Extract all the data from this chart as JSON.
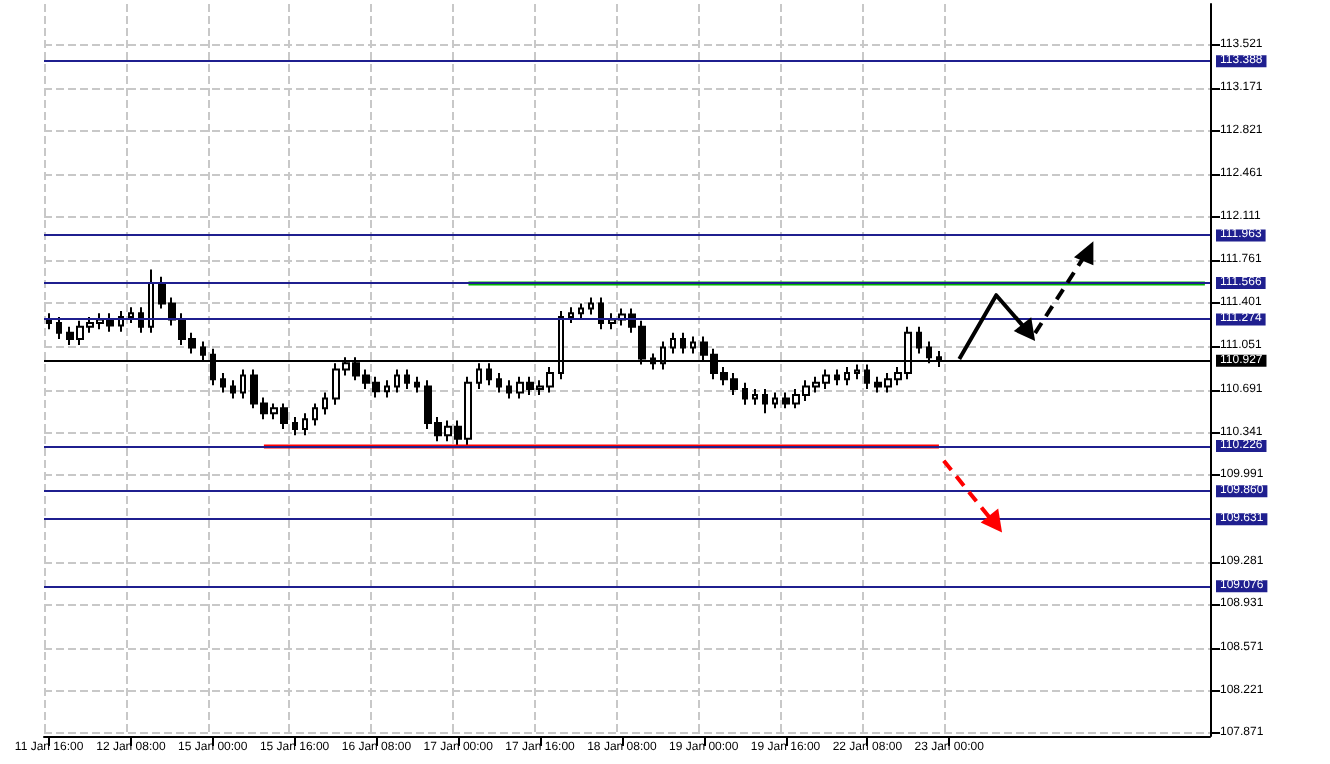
{
  "chart_data": {
    "type": "candlestick",
    "grid": true,
    "categories": [
      "11 Jan 16:00",
      null,
      null,
      null,
      null,
      null,
      null,
      null,
      "12 Jan 08:00",
      null,
      null,
      null,
      null,
      null,
      null,
      null,
      "15 Jan 00:00",
      null,
      null,
      null,
      null,
      null,
      null,
      null,
      "15 Jan 16:00",
      null,
      null,
      null,
      null,
      null,
      null,
      null,
      "16 Jan 08:00",
      null,
      null,
      null,
      null,
      null,
      null,
      null,
      "17 Jan 00:00",
      null,
      null,
      null,
      null,
      null,
      null,
      null,
      "17 Jan 16:00",
      null,
      null,
      null,
      null,
      null,
      null,
      null,
      "18 Jan 08:00",
      null,
      null,
      null,
      null,
      null,
      null,
      null,
      "19 Jan 00:00",
      null,
      null,
      null,
      null,
      null,
      null,
      null,
      "19 Jan 16:00",
      null,
      null,
      null,
      null,
      null,
      null,
      null,
      "22 Jan 08:00",
      null,
      null,
      null,
      null,
      null,
      null,
      null,
      "23 Jan 00:00",
      null,
      null,
      null,
      null,
      null,
      null,
      null,
      null,
      null,
      null,
      null,
      null,
      null,
      null,
      null,
      null,
      null,
      null,
      null,
      null,
      null,
      null,
      null,
      null,
      null
    ],
    "ylim": [
      107.85,
      113.86
    ],
    "yticks": [
      107.871,
      108.221,
      108.571,
      108.931,
      109.281,
      109.991,
      110.341,
      110.691,
      111.051,
      111.401,
      111.761,
      112.111,
      112.461,
      112.821,
      113.171,
      113.521
    ],
    "series": [
      {
        "color": "#000000",
        "ohlc": [
          [
            111.27,
            111.32,
            111.19,
            111.24
          ],
          [
            111.24,
            111.29,
            111.11,
            111.16
          ],
          [
            111.16,
            111.21,
            111.06,
            111.11
          ],
          [
            111.11,
            111.26,
            111.06,
            111.21
          ],
          [
            111.21,
            111.29,
            111.16,
            111.24
          ],
          [
            111.24,
            111.32,
            111.19,
            111.27
          ],
          [
            111.27,
            111.32,
            111.17,
            111.22
          ],
          [
            111.22,
            111.34,
            111.17,
            111.29
          ],
          [
            111.29,
            111.37,
            111.24,
            111.32
          ],
          [
            111.32,
            111.37,
            111.16,
            111.21
          ],
          [
            111.21,
            111.68,
            111.16,
            111.57
          ],
          [
            111.57,
            111.62,
            111.36,
            111.4
          ],
          [
            111.4,
            111.45,
            111.22,
            111.27
          ],
          [
            111.27,
            111.32,
            111.06,
            111.11
          ],
          [
            111.11,
            111.16,
            110.99,
            111.04
          ],
          [
            111.04,
            111.09,
            110.93,
            110.98
          ],
          [
            110.98,
            111.03,
            110.73,
            110.78
          ],
          [
            110.78,
            110.83,
            110.67,
            110.72
          ],
          [
            110.72,
            110.77,
            110.62,
            110.67
          ],
          [
            110.67,
            110.86,
            110.62,
            110.81
          ],
          [
            110.81,
            110.86,
            110.54,
            110.58
          ],
          [
            110.58,
            110.63,
            110.45,
            110.5
          ],
          [
            110.5,
            110.58,
            110.45,
            110.54
          ],
          [
            110.54,
            110.58,
            110.37,
            110.42
          ],
          [
            110.42,
            110.47,
            110.32,
            110.37
          ],
          [
            110.37,
            110.5,
            110.32,
            110.45
          ],
          [
            110.45,
            110.58,
            110.4,
            110.54
          ],
          [
            110.54,
            110.67,
            110.49,
            110.62
          ],
          [
            110.62,
            110.91,
            110.57,
            110.86
          ],
          [
            110.86,
            110.96,
            110.81,
            110.91
          ],
          [
            110.91,
            110.96,
            110.77,
            110.81
          ],
          [
            110.81,
            110.86,
            110.7,
            110.75
          ],
          [
            110.75,
            110.8,
            110.63,
            110.68
          ],
          [
            110.68,
            110.77,
            110.63,
            110.72
          ],
          [
            110.72,
            110.86,
            110.67,
            110.81
          ],
          [
            110.81,
            110.86,
            110.7,
            110.75
          ],
          [
            110.75,
            110.8,
            110.67,
            110.72
          ],
          [
            110.72,
            110.77,
            110.37,
            110.42
          ],
          [
            110.42,
            110.47,
            110.27,
            110.32
          ],
          [
            110.32,
            110.44,
            110.27,
            110.39
          ],
          [
            110.39,
            110.44,
            110.22,
            110.29
          ],
          [
            110.29,
            110.8,
            110.24,
            110.75
          ],
          [
            110.75,
            110.91,
            110.7,
            110.86
          ],
          [
            110.86,
            110.91,
            110.73,
            110.78
          ],
          [
            110.78,
            110.83,
            110.67,
            110.72
          ],
          [
            110.72,
            110.77,
            110.62,
            110.67
          ],
          [
            110.67,
            110.8,
            110.62,
            110.75
          ],
          [
            110.75,
            110.8,
            110.65,
            110.7
          ],
          [
            110.7,
            110.77,
            110.65,
            110.72
          ],
          [
            110.72,
            110.88,
            110.67,
            110.83
          ],
          [
            110.83,
            111.34,
            110.78,
            111.29
          ],
          [
            111.29,
            111.37,
            111.24,
            111.32
          ],
          [
            111.32,
            111.4,
            111.27,
            111.36
          ],
          [
            111.36,
            111.45,
            111.31,
            111.4
          ],
          [
            111.4,
            111.45,
            111.19,
            111.24
          ],
          [
            111.24,
            111.32,
            111.19,
            111.27
          ],
          [
            111.27,
            111.36,
            111.22,
            111.31
          ],
          [
            111.31,
            111.36,
            111.16,
            111.21
          ],
          [
            111.21,
            111.26,
            110.9,
            110.95
          ],
          [
            110.95,
            110.99,
            110.86,
            110.91
          ],
          [
            110.91,
            111.09,
            110.86,
            111.04
          ],
          [
            111.04,
            111.16,
            110.99,
            111.11
          ],
          [
            111.11,
            111.16,
            110.99,
            111.04
          ],
          [
            111.04,
            111.13,
            110.99,
            111.08
          ],
          [
            111.08,
            111.13,
            110.93,
            110.98
          ],
          [
            110.98,
            111.03,
            110.78,
            110.83
          ],
          [
            110.83,
            110.88,
            110.73,
            110.78
          ],
          [
            110.78,
            110.83,
            110.65,
            110.7
          ],
          [
            110.7,
            110.75,
            110.57,
            110.62
          ],
          [
            110.62,
            110.7,
            110.57,
            110.65
          ],
          [
            110.65,
            110.7,
            110.5,
            110.58
          ],
          [
            110.58,
            110.67,
            110.54,
            110.62
          ],
          [
            110.62,
            110.67,
            110.54,
            110.58
          ],
          [
            110.58,
            110.7,
            110.54,
            110.65
          ],
          [
            110.65,
            110.77,
            110.6,
            110.72
          ],
          [
            110.72,
            110.8,
            110.67,
            110.75
          ],
          [
            110.75,
            110.86,
            110.7,
            110.81
          ],
          [
            110.81,
            110.86,
            110.73,
            110.78
          ],
          [
            110.78,
            110.88,
            110.73,
            110.83
          ],
          [
            110.83,
            110.9,
            110.78,
            110.85
          ],
          [
            110.85,
            110.9,
            110.7,
            110.75
          ],
          [
            110.75,
            110.8,
            110.67,
            110.72
          ],
          [
            110.72,
            110.83,
            110.67,
            110.78
          ],
          [
            110.78,
            110.88,
            110.73,
            110.83
          ],
          [
            110.83,
            111.21,
            110.78,
            111.16
          ],
          [
            111.16,
            111.21,
            110.99,
            111.04
          ],
          [
            111.04,
            111.09,
            110.91,
            110.96
          ],
          [
            110.96,
            111.01,
            110.88,
            110.93
          ],
          null,
          null,
          null,
          null,
          null,
          null,
          null,
          null,
          null,
          null,
          null,
          null,
          null,
          null,
          null,
          null,
          null,
          null,
          null,
          null,
          null,
          null,
          null,
          null,
          null,
          null
        ]
      },
      {
        "type": "line",
        "color": "#00b400",
        "values": [
          null,
          null,
          null,
          null,
          null,
          null,
          null,
          null,
          null,
          null,
          null,
          null,
          null,
          null,
          null,
          null,
          null,
          null,
          null,
          null,
          null,
          null,
          null,
          null,
          null,
          null,
          null,
          null,
          null,
          null,
          null,
          null,
          null,
          null,
          null,
          null,
          null,
          null,
          null,
          null,
          null,
          111.566,
          111.566,
          111.566,
          111.566,
          111.566,
          111.566,
          111.566,
          111.566,
          111.566,
          111.566,
          111.566,
          111.566,
          111.566,
          111.566,
          111.566,
          111.566,
          111.566,
          111.566,
          111.566,
          111.566,
          111.566,
          111.566,
          111.566,
          111.566,
          111.566,
          111.566,
          111.566,
          111.566,
          111.566,
          111.566,
          111.566,
          111.566,
          111.566,
          111.566,
          111.566,
          111.566,
          111.566,
          111.566,
          111.566,
          111.566,
          111.566,
          111.566,
          111.566,
          111.566,
          111.566,
          111.566,
          111.566,
          111.566,
          111.566,
          111.566,
          111.566,
          111.566,
          111.566,
          111.566,
          111.566,
          111.566,
          111.566,
          111.566,
          111.566,
          111.566,
          111.566,
          111.566,
          111.566,
          111.566,
          111.566,
          111.566,
          111.566,
          111.566,
          111.566,
          111.566,
          111.566,
          111.566,
          111.566
        ]
      },
      {
        "type": "line",
        "color": "#ff0000",
        "values": [
          null,
          null,
          null,
          null,
          null,
          null,
          null,
          null,
          null,
          null,
          null,
          null,
          null,
          null,
          null,
          null,
          null,
          null,
          null,
          null,
          null,
          110.226,
          110.226,
          110.226,
          110.226,
          110.226,
          110.226,
          110.226,
          110.226,
          110.226,
          110.226,
          110.226,
          110.226,
          110.226,
          110.226,
          110.226,
          110.226,
          110.226,
          110.226,
          110.226,
          110.226,
          110.226,
          110.226,
          110.226,
          110.226,
          110.226,
          110.226,
          110.226,
          110.226,
          110.226,
          110.226,
          110.226,
          110.226,
          110.226,
          110.226,
          110.226,
          110.226,
          110.226,
          110.226,
          110.226,
          110.226,
          110.226,
          110.226,
          110.226,
          110.226,
          110.226,
          110.226,
          110.226,
          110.226,
          110.226,
          110.226,
          110.226,
          110.226,
          110.226,
          110.226,
          110.226,
          110.226,
          110.226,
          110.226,
          110.226,
          110.226,
          110.226,
          110.226,
          110.226,
          110.226,
          110.226,
          110.226,
          110.226,
          null,
          null,
          null,
          null,
          null,
          null,
          null,
          null,
          null,
          null,
          null,
          null,
          null,
          null,
          null,
          null,
          null,
          null,
          null,
          null,
          null,
          null,
          null,
          null,
          null,
          null
        ]
      }
    ],
    "ref_lines": [
      {
        "axis": "y",
        "value": 113.388,
        "label": "113.388",
        "color": "#1f1f8f"
      },
      {
        "axis": "y",
        "value": 111.963,
        "label": "111.963",
        "color": "#1f1f8f"
      },
      {
        "axis": "y",
        "value": 111.566,
        "label": "111.566",
        "color": "#1f1f8f"
      },
      {
        "axis": "y",
        "value": 111.274,
        "label": "111.274",
        "color": "#1f1f8f"
      },
      {
        "axis": "y",
        "value": 110.927,
        "label": "110.927",
        "color": "#000000"
      },
      {
        "axis": "y",
        "value": 110.226,
        "label": "110.226",
        "color": "#1f1f8f"
      },
      {
        "axis": "y",
        "value": 109.86,
        "label": "109.860",
        "color": "#1f1f8f"
      },
      {
        "axis": "y",
        "value": 109.631,
        "label": "109.631",
        "color": "#1f1f8f"
      },
      {
        "axis": "y",
        "value": 109.076,
        "label": "109.076",
        "color": "#1f1f8f"
      }
    ]
  }
}
